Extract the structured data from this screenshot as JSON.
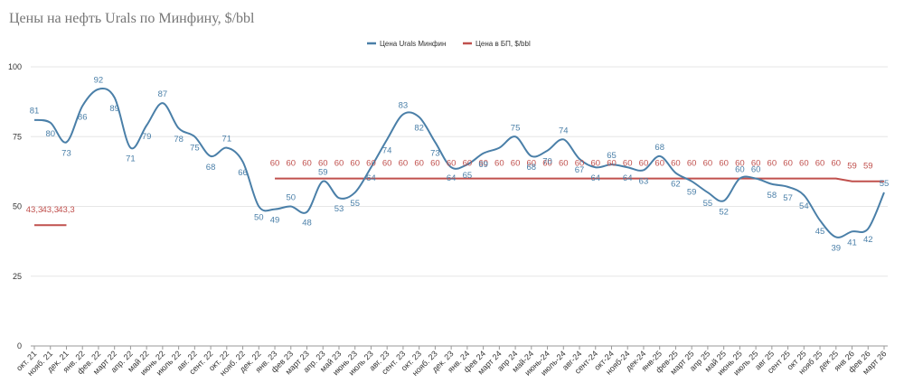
{
  "chart_data": {
    "type": "line",
    "title": "Цены на нефть Urals по Минфину, $/bbl",
    "ylim": [
      0,
      100
    ],
    "yticks": [
      "0",
      "25",
      "50",
      "75",
      "100"
    ],
    "categories": [
      "окт. 21",
      "нояб. 21",
      "дек. 21",
      "янв. 22",
      "фев. 22",
      "март 22",
      "апр. 22",
      "май 22",
      "июнь 22",
      "июль 22",
      "авг. 22",
      "сент. 22",
      "окт. 22",
      "нояб. 22",
      "дек. 22",
      "янв. 23",
      "фев 23",
      "март 23",
      "апр. 23",
      "май 23",
      "июнь 23",
      "июль 23",
      "авг. 23",
      "сент. 23",
      "окт. 23",
      "нояб. 23",
      "дек. 23",
      "янв. 24",
      "фев 24",
      "март 24",
      "апр 24",
      "май-24",
      "июнь-24",
      "июль-24",
      "авг-24",
      "сент-24",
      "окт-24",
      "нояб-24",
      "дек-24",
      "янв-25",
      "фев-25",
      "март 25",
      "апр 25",
      "май 25",
      "июнь 25",
      "июль 25",
      "авг 25",
      "сент 25",
      "окт 25",
      "нояб 25",
      "дек 25",
      "янв 26",
      "фев 26",
      "март 26"
    ],
    "series": [
      {
        "name": "Цена Urals Минфин",
        "color": "#4a7fa8",
        "values": [
          81,
          80,
          73,
          86,
          92,
          89,
          71,
          79,
          87,
          78,
          75,
          68,
          71,
          66,
          50,
          49,
          50,
          48,
          59,
          53,
          55,
          64,
          74,
          83,
          82,
          73,
          64,
          65,
          69,
          71,
          75,
          68,
          70,
          74,
          67,
          64,
          65,
          64,
          63,
          68,
          62,
          59,
          55,
          52,
          60,
          60,
          58,
          57,
          54,
          45,
          39,
          41,
          42,
          55
        ],
        "labels": [
          "81",
          "80",
          "73",
          "86",
          "92",
          "89",
          "71",
          "79",
          "87",
          "78",
          "75",
          "68",
          "71",
          "66",
          "50",
          "49",
          "50",
          "48",
          "59",
          "53",
          "55",
          "64",
          "74",
          "83",
          "82",
          "73",
          "64",
          "65",
          "69",
          "",
          "75",
          "68",
          "70",
          "74",
          "67",
          "64",
          "65",
          "64",
          "63",
          "68",
          "62",
          "59",
          "55",
          "52",
          "60",
          "60",
          "58",
          "57",
          "54",
          "45",
          "39",
          "41",
          "42",
          "55"
        ]
      },
      {
        "name": "Цена в БП, $/bbl",
        "color": "#c0504d",
        "segments": [
          {
            "start": 0,
            "values": [
              43.3,
              43.3,
              43.3
            ],
            "labels": [
              "43,3",
              "43,3",
              "43,3"
            ]
          },
          {
            "start": 15,
            "values": [
              60,
              60,
              60,
              60,
              60,
              60,
              60,
              60,
              60,
              60,
              60,
              60,
              60,
              60,
              60,
              60,
              60,
              60,
              60,
              60,
              60,
              60,
              60,
              60,
              60,
              60,
              60,
              60,
              60,
              60,
              60,
              60,
              60,
              60,
              60,
              60,
              59,
              59,
              59
            ],
            "labels": [
              "60",
              "60",
              "60",
              "60",
              "60",
              "60",
              "60",
              "60",
              "60",
              "60",
              "60",
              "60",
              "60",
              "60",
              "60",
              "60",
              "60",
              "60",
              "60",
              "60",
              "60",
              "60",
              "60",
              "60",
              "60",
              "60",
              "60",
              "60",
              "60",
              "60",
              "60",
              "60",
              "60",
              "60",
              "60",
              "60",
              "59",
              "59",
              ""
            ]
          }
        ]
      }
    ],
    "legend_position": "top-center"
  }
}
